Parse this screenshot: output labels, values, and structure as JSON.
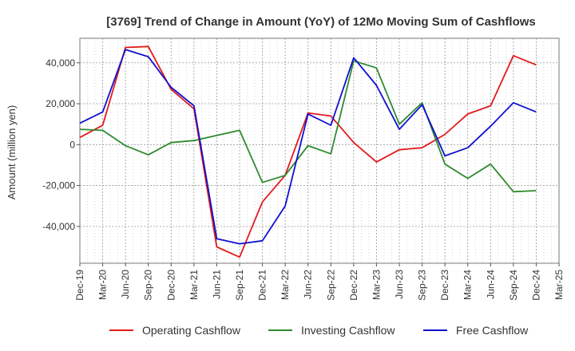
{
  "chart_data": {
    "type": "line",
    "title": "[3769]  Trend of Change in Amount (YoY) of 12Mo Moving Sum of Cashflows",
    "xlabel": "",
    "ylabel": "Amount (million yen)",
    "ylim": [
      -58000,
      52000
    ],
    "yticks": [
      -40000,
      -20000,
      0,
      20000,
      40000
    ],
    "ytick_labels": [
      "-40,000",
      "-20,000",
      "0",
      "20,000",
      "40,000"
    ],
    "categories": [
      "Dec-19",
      "Mar-20",
      "Jun-20",
      "Sep-20",
      "Dec-20",
      "Mar-21",
      "Jun-21",
      "Sep-21",
      "Dec-21",
      "Mar-22",
      "Jun-22",
      "Sep-22",
      "Dec-22",
      "Mar-23",
      "Jun-23",
      "Sep-23",
      "Dec-23",
      "Mar-24",
      "Jun-24",
      "Sep-24",
      "Dec-24",
      "Mar-25"
    ],
    "grid": true,
    "legend_position": "bottom",
    "series": [
      {
        "name": "Operating Cashflow",
        "color": "#e31a1c",
        "values": [
          3500,
          9500,
          47500,
          48000,
          27000,
          17500,
          -50000,
          -55000,
          -28000,
          -15000,
          15500,
          14000,
          1000,
          -8500,
          -2500,
          -1500,
          5000,
          15000,
          19000,
          43500,
          39000,
          null
        ]
      },
      {
        "name": "Investing Cashflow",
        "color": "#2e8b2e",
        "values": [
          7500,
          7000,
          -500,
          -5000,
          1000,
          2000,
          4500,
          7000,
          -18500,
          -15000,
          -500,
          -4500,
          41000,
          37500,
          10000,
          20500,
          -9500,
          -16500,
          -9500,
          -23000,
          -22500,
          null
        ]
      },
      {
        "name": "Free Cashflow",
        "color": "#1010d0",
        "values": [
          10500,
          16000,
          46500,
          43000,
          28000,
          19000,
          -46000,
          -48500,
          -47000,
          -30000,
          15000,
          9500,
          42500,
          29000,
          7500,
          19500,
          -5500,
          -1500,
          9000,
          20500,
          16000,
          null
        ]
      }
    ]
  }
}
